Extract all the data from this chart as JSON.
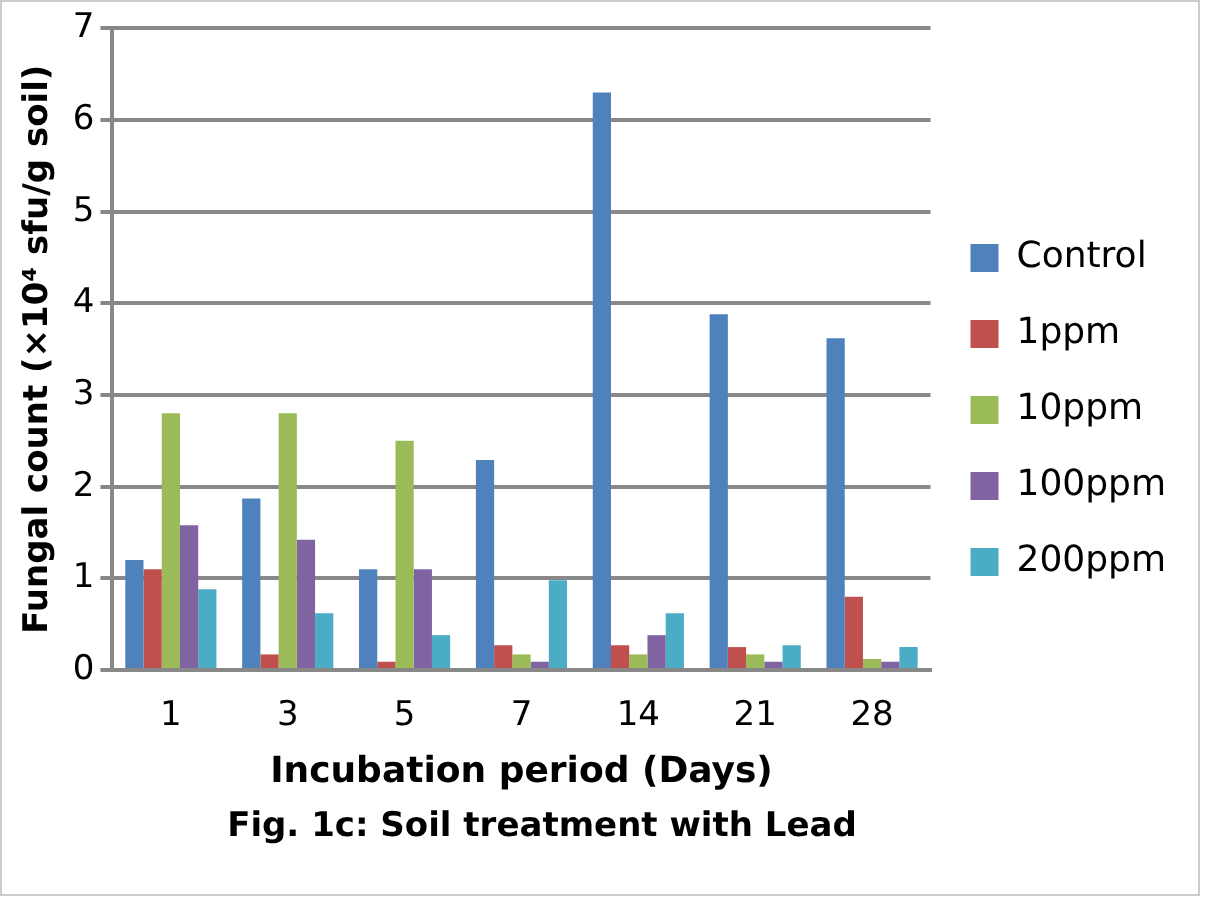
{
  "chart_data": {
    "type": "bar",
    "xlabel": "Incubation period (Days)",
    "ylabel": "Fungal count (×10⁴ sfu/g soil)",
    "annotations": [
      "Fig. 1c: Soil treatment with Lead"
    ],
    "categories": [
      "1",
      "3",
      "5",
      "7",
      "14",
      "21",
      "28"
    ],
    "series": [
      {
        "name": "Control",
        "color": "#4f81bd",
        "values": [
          1.2,
          1.87,
          1.1,
          2.29,
          6.3,
          3.88,
          3.62
        ]
      },
      {
        "name": "1ppm",
        "color": "#c0504d",
        "values": [
          1.1,
          0.17,
          0.09,
          0.27,
          0.27,
          0.25,
          0.8
        ]
      },
      {
        "name": "10ppm",
        "color": "#9bbb59",
        "values": [
          2.8,
          2.8,
          2.5,
          0.17,
          0.17,
          0.17,
          0.12
        ]
      },
      {
        "name": "100ppm",
        "color": "#8064a2",
        "values": [
          1.58,
          1.42,
          1.1,
          0.09,
          0.38,
          0.09,
          0.09
        ]
      },
      {
        "name": "200ppm",
        "color": "#4bacc6",
        "values": [
          0.88,
          0.62,
          0.38,
          0.98,
          0.62,
          0.27,
          0.25
        ]
      }
    ],
    "ylim": [
      0,
      7
    ],
    "yticks": [
      0,
      1,
      2,
      3,
      4,
      5,
      6,
      7
    ],
    "grid": "y",
    "legend": "right"
  }
}
